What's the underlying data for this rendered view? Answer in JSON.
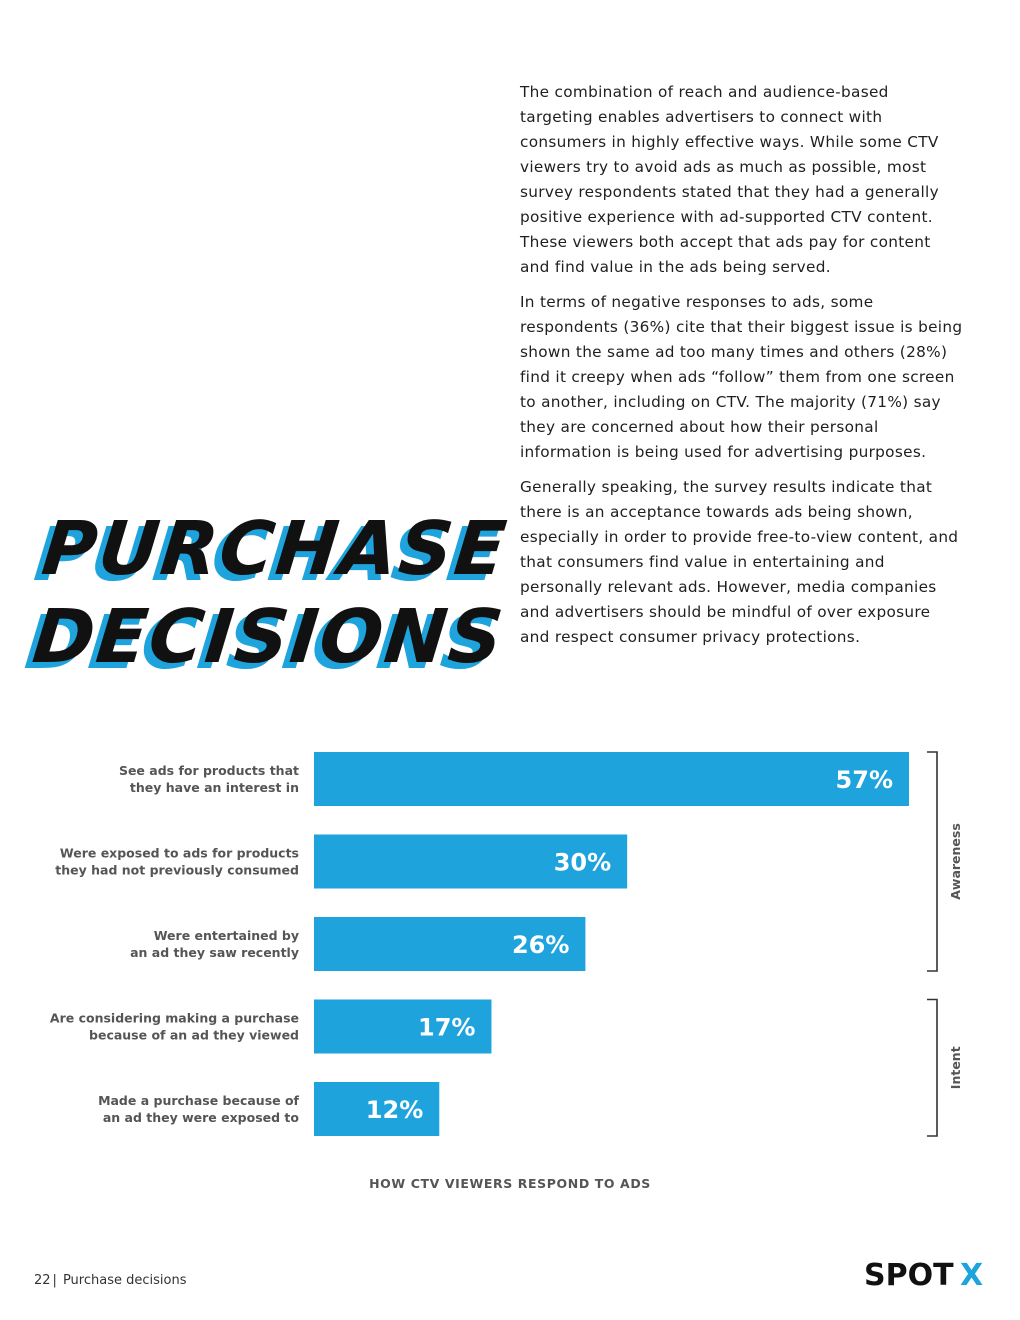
{
  "intro": {
    "paragraphs": [
      "The combination of reach and audience-based targeting enables advertisers to connect with consumers in highly effective ways. While some CTV viewers try to avoid ads as much as possible, most survey respondents stated that they had a generally positive experience with ad-supported CTV content. These viewers both accept that ads pay for content and find value in the ads being served.",
      "In terms of negative responses to ads, some respondents (36%) cite that their biggest issue is being shown the same ad too many times and others (28%) find it creepy when ads “follow” them from one screen to another, including on CTV. The majority (71%) say they are concerned about how their personal information is being used for advertising purposes.",
      "Generally speaking, the survey results indicate that there is an acceptance towards ads being shown, especially in order to provide free-to-view content, and that consumers find value in entertaining and personally relevant ads. However, media companies and advertisers should be mindful of over exposure and respect consumer privacy protections."
    ]
  },
  "headline": {
    "line1": "PURCHASE",
    "line2": "DECISIONS"
  },
  "chart_data": {
    "type": "bar",
    "orientation": "horizontal",
    "categories": [
      [
        "See ads for products that",
        "they have an interest in"
      ],
      [
        "Were exposed to ads for products",
        "they had not previously consumed"
      ],
      [
        "Were entertained by",
        "an ad they saw recently"
      ],
      [
        "Are considering making a purchase",
        "because of an ad they viewed"
      ],
      [
        "Made a purchase because of",
        "an ad they were exposed to"
      ]
    ],
    "values": [
      57,
      30,
      26,
      17,
      12
    ],
    "value_labels": [
      "57%",
      "30%",
      "26%",
      "17%",
      "12%"
    ],
    "xlim": [
      0,
      57
    ],
    "bar_color": "#1ea3dd",
    "groups": [
      {
        "label": "Awareness",
        "from": 0,
        "to": 2
      },
      {
        "label": "Intent",
        "from": 3,
        "to": 4
      }
    ],
    "title": "HOW CTV VIEWERS RESPOND TO ADS"
  },
  "footer": {
    "page_number": "22",
    "separator": "|",
    "section": "Purchase decisions"
  },
  "logo": {
    "text_main": "SPOT",
    "text_accent": "X",
    "accent_color": "#1ea3dd"
  }
}
